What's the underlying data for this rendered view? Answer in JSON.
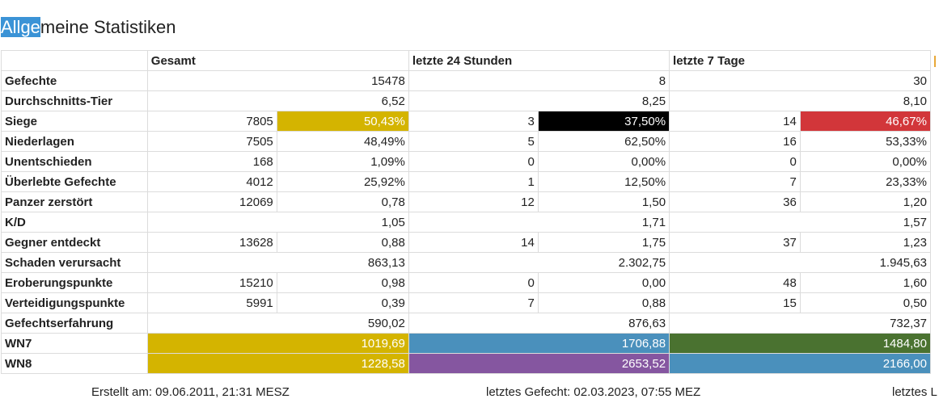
{
  "heading": {
    "selected": "Allge",
    "rest": "meine Statistiken"
  },
  "colors": {
    "gold": "#d4b400",
    "black": "#000000",
    "red": "#d2363a",
    "blue": "#4a90bc",
    "green": "#4a7230",
    "purple": "#8556a0"
  },
  "headers": {
    "total": "Gesamt",
    "day": "letzte 24 Stunden",
    "week": "letzte 7 Tage"
  },
  "rows": [
    {
      "label": "Gefechte",
      "t": [
        "",
        "15478"
      ],
      "d": [
        "",
        "8"
      ],
      "w": [
        "",
        "30"
      ]
    },
    {
      "label": "Durchschnitts-Tier",
      "t": [
        "",
        "6,52"
      ],
      "d": [
        "",
        "8,25"
      ],
      "w": [
        "",
        "8,10"
      ]
    },
    {
      "label": "Siege",
      "t": [
        "7805",
        "50,43%"
      ],
      "d": [
        "3",
        "37,50%"
      ],
      "w": [
        "14",
        "46,67%"
      ]
    },
    {
      "label": "Niederlagen",
      "t": [
        "7505",
        "48,49%"
      ],
      "d": [
        "5",
        "62,50%"
      ],
      "w": [
        "16",
        "53,33%"
      ]
    },
    {
      "label": "Unentschieden",
      "t": [
        "168",
        "1,09%"
      ],
      "d": [
        "0",
        "0,00%"
      ],
      "w": [
        "0",
        "0,00%"
      ]
    },
    {
      "label": "Überlebte Gefechte",
      "t": [
        "4012",
        "25,92%"
      ],
      "d": [
        "1",
        "12,50%"
      ],
      "w": [
        "7",
        "23,33%"
      ]
    },
    {
      "label": "Panzer zerstört",
      "t": [
        "12069",
        "0,78"
      ],
      "d": [
        "12",
        "1,50"
      ],
      "w": [
        "36",
        "1,20"
      ]
    },
    {
      "label": "K/D",
      "t": [
        "",
        "1,05"
      ],
      "d": [
        "",
        "1,71"
      ],
      "w": [
        "",
        "1,57"
      ]
    },
    {
      "label": "Gegner entdeckt",
      "t": [
        "13628",
        "0,88"
      ],
      "d": [
        "14",
        "1,75"
      ],
      "w": [
        "37",
        "1,23"
      ]
    },
    {
      "label": "Schaden verursacht",
      "t": [
        "",
        "863,13"
      ],
      "d": [
        "",
        "2.302,75"
      ],
      "w": [
        "",
        "1.945,63"
      ]
    },
    {
      "label": "Eroberungspunkte",
      "t": [
        "15210",
        "0,98"
      ],
      "d": [
        "0",
        "0,00"
      ],
      "w": [
        "48",
        "1,60"
      ]
    },
    {
      "label": "Verteidigungspunkte",
      "t": [
        "5991",
        "0,39"
      ],
      "d": [
        "7",
        "0,88"
      ],
      "w": [
        "15",
        "0,50"
      ]
    },
    {
      "label": "Gefechtserfahrung",
      "t": [
        "",
        "590,02"
      ],
      "d": [
        "",
        "876,63"
      ],
      "w": [
        "",
        "732,37"
      ]
    },
    {
      "label": "WN7",
      "t": [
        "",
        "1019,69"
      ],
      "d": [
        "",
        "1706,88"
      ],
      "w": [
        "",
        "1484,80"
      ]
    },
    {
      "label": "WN8",
      "t": [
        "",
        "1228,58"
      ],
      "d": [
        "",
        "2653,52"
      ],
      "w": [
        "",
        "2166,00"
      ]
    }
  ],
  "footer": {
    "created": "Erstellt am: 09.06.2011, 21:31 MESZ",
    "last_battle": "letztes Gefecht: 02.03.2023, 07:55 MEZ",
    "last_partial": "letztes L"
  }
}
